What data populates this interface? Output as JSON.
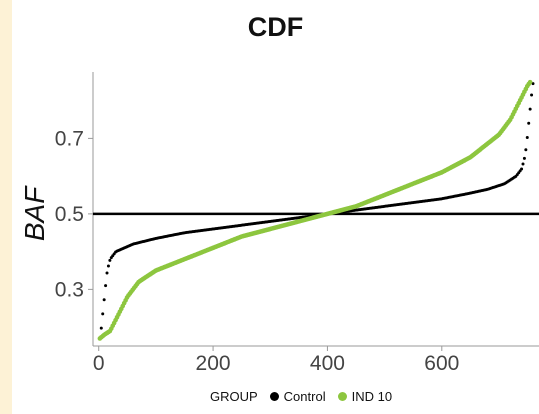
{
  "chart_data": {
    "type": "scatter",
    "title": "CDF",
    "xlabel": "",
    "ylabel": "BAF",
    "xlim": [
      -10,
      770
    ],
    "ylim": [
      0.15,
      0.86
    ],
    "xticks": [
      0,
      200,
      400,
      600
    ],
    "yticks": [
      0.3,
      0.5,
      0.7
    ],
    "hline": 0.5,
    "grid": false,
    "legend": {
      "title": "GROUP",
      "placement": "bottom",
      "entries": [
        {
          "name": "Control",
          "color": "#000000"
        },
        {
          "name": "IND 10",
          "color": "#8dc63f"
        }
      ]
    },
    "series": [
      {
        "name": "Control",
        "color": "#000000",
        "x": [
          2,
          4,
          6,
          8,
          10,
          12,
          15,
          20,
          30,
          45,
          60,
          100,
          150,
          200,
          250,
          300,
          350,
          400,
          450,
          500,
          550,
          600,
          650,
          680,
          710,
          730,
          740,
          745,
          748,
          750,
          752,
          754,
          756,
          758,
          760
        ],
        "y": [
          0.17,
          0.19,
          0.22,
          0.25,
          0.28,
          0.31,
          0.35,
          0.38,
          0.4,
          0.41,
          0.42,
          0.435,
          0.45,
          0.46,
          0.47,
          0.48,
          0.49,
          0.5,
          0.51,
          0.52,
          0.53,
          0.54,
          0.555,
          0.565,
          0.58,
          0.6,
          0.62,
          0.65,
          0.68,
          0.71,
          0.74,
          0.77,
          0.8,
          0.83,
          0.85
        ]
      },
      {
        "name": "IND 10",
        "color": "#8dc63f",
        "x": [
          2,
          10,
          20,
          30,
          40,
          50,
          60,
          70,
          80,
          100,
          150,
          200,
          250,
          300,
          350,
          400,
          450,
          500,
          550,
          600,
          650,
          700,
          720,
          730,
          740,
          750,
          755
        ],
        "y": [
          0.17,
          0.18,
          0.19,
          0.22,
          0.25,
          0.28,
          0.3,
          0.32,
          0.33,
          0.35,
          0.38,
          0.41,
          0.44,
          0.46,
          0.48,
          0.5,
          0.52,
          0.55,
          0.58,
          0.61,
          0.65,
          0.71,
          0.75,
          0.78,
          0.81,
          0.84,
          0.85
        ]
      }
    ]
  }
}
